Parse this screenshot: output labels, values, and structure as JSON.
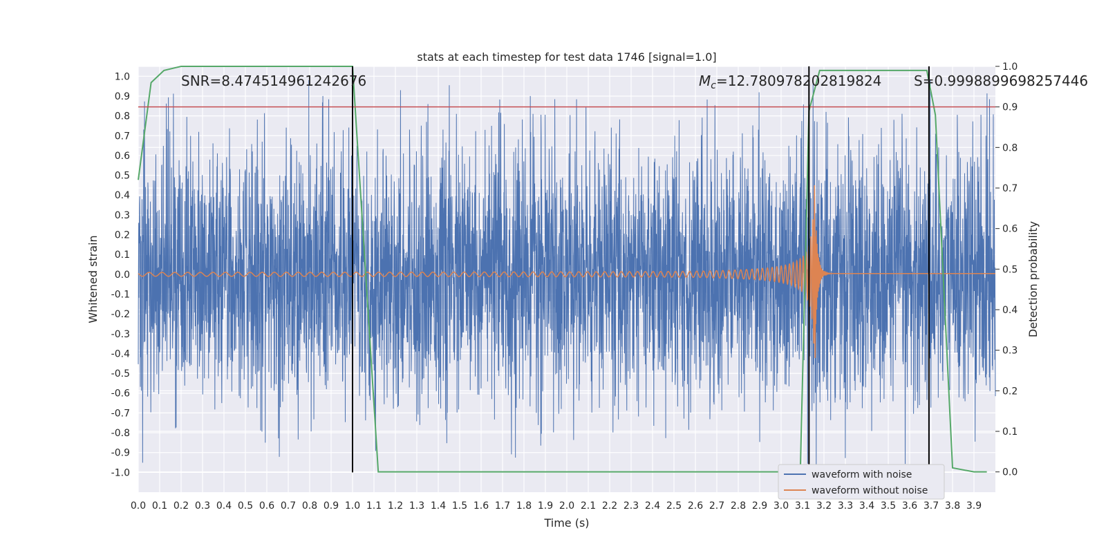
{
  "chart_data": {
    "type": "line",
    "title": "stats at each timestep for test data 1746 [signal=1.0]",
    "xlabel": "Time (s)",
    "ylabel_left": "Whitened strain",
    "ylabel_right": "Detection probability",
    "xlim": [
      0.0,
      4.0
    ],
    "ylim_left": [
      -1.1,
      1.05
    ],
    "ylim_right": [
      -0.05,
      1.0
    ],
    "x_ticks": [
      "0.0",
      "0.1",
      "0.2",
      "0.3",
      "0.4",
      "0.5",
      "0.6",
      "0.7",
      "0.8",
      "0.9",
      "1.0",
      "1.1",
      "1.2",
      "1.3",
      "1.4",
      "1.5",
      "1.6",
      "1.7",
      "1.8",
      "1.9",
      "2.0",
      "2.1",
      "2.2",
      "2.3",
      "2.4",
      "2.5",
      "2.6",
      "2.7",
      "2.8",
      "2.9",
      "3.0",
      "3.1",
      "3.2",
      "3.3",
      "3.4",
      "3.5",
      "3.6",
      "3.7",
      "3.8",
      "3.9"
    ],
    "y_left_ticks": [
      "1.0",
      "0.9",
      "0.8",
      "0.7",
      "0.6",
      "0.5",
      "0.4",
      "0.3",
      "0.2",
      "0.1",
      "0.0",
      "-0.1",
      "-0.2",
      "-0.3",
      "-0.4",
      "-0.5",
      "-0.6",
      "-0.7",
      "-0.8",
      "-0.9",
      "-1.0"
    ],
    "y_right_ticks": [
      "1.0",
      "0.9",
      "0.8",
      "0.7",
      "0.6",
      "0.5",
      "0.4",
      "0.3",
      "0.2",
      "0.1",
      "0.0"
    ],
    "grid": true,
    "legend_position": "bottom-right",
    "series": [
      {
        "name": "waveform with noise",
        "color": "#4c72b0",
        "axis": "left",
        "kind": "noise",
        "amplitude": 0.32
      },
      {
        "name": "waveform without noise",
        "color": "#dd8452",
        "axis": "left",
        "kind": "chirp",
        "merger_time": 3.16
      },
      {
        "name": "",
        "color": "#55a868",
        "axis": "right",
        "x": [
          0.0,
          0.06,
          0.12,
          0.2,
          0.5,
          1.0,
          1.12,
          1.18,
          3.0,
          3.09,
          3.13,
          3.18,
          3.3,
          3.68,
          3.72,
          3.8,
          3.9,
          3.96
        ],
        "y": [
          0.72,
          0.96,
          0.99,
          1.0,
          1.0,
          1.0,
          0.0,
          0.0,
          0.0,
          0.01,
          0.89,
          0.99,
          0.99,
          0.99,
          0.88,
          0.01,
          0.0,
          0.0
        ]
      }
    ],
    "threshold": {
      "axis": "right",
      "value": 0.9,
      "color": "#c44e52"
    },
    "vlines": [
      1.0,
      3.13,
      3.69
    ],
    "vline_color": "#000000",
    "annotations": {
      "snr": "SNR=8.474514961242676",
      "mc_symbol": "M",
      "mc_sub": "c",
      "mc_value": "=12.780978202819824",
      "s_text": "S=0.9998899698257446"
    }
  }
}
